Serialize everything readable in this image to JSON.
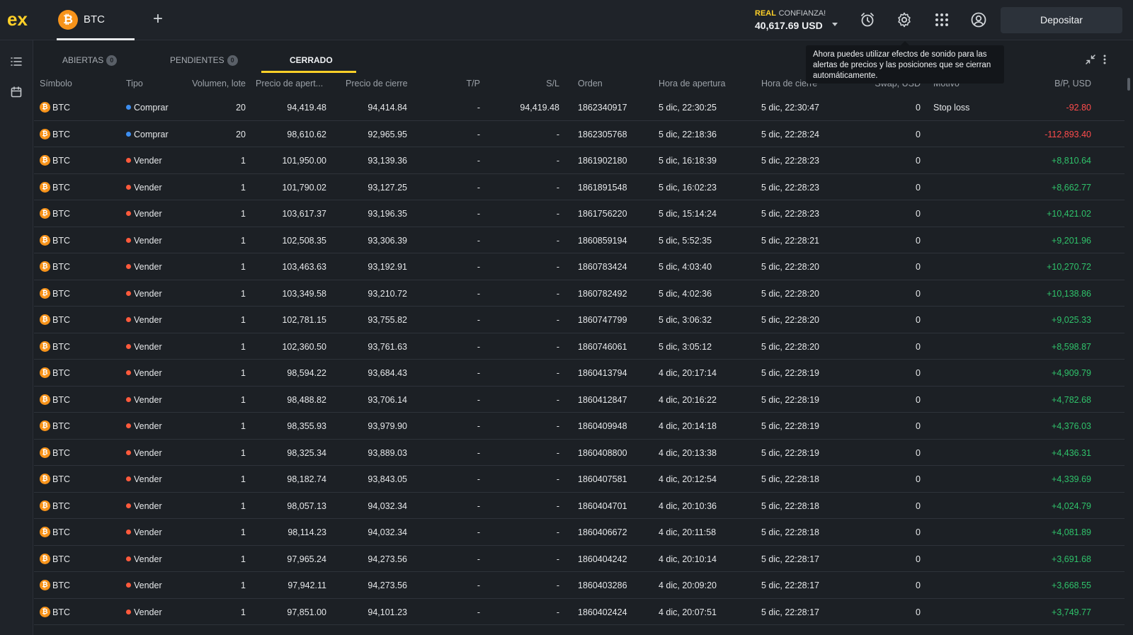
{
  "header": {
    "logo_text": "ex",
    "active_tab": {
      "coin_symbol": "₿",
      "label": "BTC"
    },
    "add_tab": "+",
    "account": {
      "type": "REAL",
      "name": "CONFIANZA!",
      "balance": "40,617.69 USD"
    },
    "icons": [
      "alarm-icon",
      "gear-icon",
      "apps-grid-icon",
      "user-icon"
    ],
    "deposit_label": "Depositar"
  },
  "sidebar": {
    "icons": [
      "list-icon",
      "calendar-icon"
    ]
  },
  "tabs": [
    {
      "label": "ABIERTAS",
      "badge": "0"
    },
    {
      "label": "PENDIENTES",
      "badge": "0"
    },
    {
      "label": "CERRADO"
    }
  ],
  "tooltip": "Ahora puedes utilizar efectos de sonido para las alertas de precios y las posiciones que se cierran automáticamente.",
  "columns": {
    "symbol": "Símbolo",
    "type": "Tipo",
    "volume": "Volumen, lote",
    "open_price": "Precio de apert...",
    "close_price": "Precio de cierre",
    "tp": "T/P",
    "sl": "S/L",
    "order": "Orden",
    "open_time": "Hora de apertura",
    "close_time": "Hora de cierre",
    "swap": "Swap, USD",
    "reason": "Motivo",
    "pnl": "B/P, USD"
  },
  "colors": {
    "buy": "#3d8ef0",
    "sell": "#ff5a3c",
    "profit": "#2fc26a",
    "loss": "#ff4c4c",
    "accent": "#ffd028"
  },
  "rows": [
    {
      "symbol": "BTC",
      "type": "Comprar",
      "side": "buy",
      "volume": "20",
      "open": "94,419.48",
      "close": "94,414.84",
      "tp": "-",
      "sl": "94,419.48",
      "order": "1862340917",
      "open_time": "5 dic, 22:30:25",
      "close_time": "5 dic, 22:30:47",
      "swap": "0",
      "reason": "Stop loss",
      "pnl": "-92.80",
      "pnl_sign": "neg"
    },
    {
      "symbol": "BTC",
      "type": "Comprar",
      "side": "buy",
      "volume": "20",
      "open": "98,610.62",
      "close": "92,965.95",
      "tp": "-",
      "sl": "-",
      "order": "1862305768",
      "open_time": "5 dic, 22:18:36",
      "close_time": "5 dic, 22:28:24",
      "swap": "0",
      "reason": "",
      "pnl": "-112,893.40",
      "pnl_sign": "neg"
    },
    {
      "symbol": "BTC",
      "type": "Vender",
      "side": "sell",
      "volume": "1",
      "open": "101,950.00",
      "close": "93,139.36",
      "tp": "-",
      "sl": "-",
      "order": "1861902180",
      "open_time": "5 dic, 16:18:39",
      "close_time": "5 dic, 22:28:23",
      "swap": "0",
      "reason": "",
      "pnl": "+8,810.64",
      "pnl_sign": "pos"
    },
    {
      "symbol": "BTC",
      "type": "Vender",
      "side": "sell",
      "volume": "1",
      "open": "101,790.02",
      "close": "93,127.25",
      "tp": "-",
      "sl": "-",
      "order": "1861891548",
      "open_time": "5 dic, 16:02:23",
      "close_time": "5 dic, 22:28:23",
      "swap": "0",
      "reason": "",
      "pnl": "+8,662.77",
      "pnl_sign": "pos"
    },
    {
      "symbol": "BTC",
      "type": "Vender",
      "side": "sell",
      "volume": "1",
      "open": "103,617.37",
      "close": "93,196.35",
      "tp": "-",
      "sl": "-",
      "order": "1861756220",
      "open_time": "5 dic, 15:14:24",
      "close_time": "5 dic, 22:28:23",
      "swap": "0",
      "reason": "",
      "pnl": "+10,421.02",
      "pnl_sign": "pos"
    },
    {
      "symbol": "BTC",
      "type": "Vender",
      "side": "sell",
      "volume": "1",
      "open": "102,508.35",
      "close": "93,306.39",
      "tp": "-",
      "sl": "-",
      "order": "1860859194",
      "open_time": "5 dic, 5:52:35",
      "close_time": "5 dic, 22:28:21",
      "swap": "0",
      "reason": "",
      "pnl": "+9,201.96",
      "pnl_sign": "pos"
    },
    {
      "symbol": "BTC",
      "type": "Vender",
      "side": "sell",
      "volume": "1",
      "open": "103,463.63",
      "close": "93,192.91",
      "tp": "-",
      "sl": "-",
      "order": "1860783424",
      "open_time": "5 dic, 4:03:40",
      "close_time": "5 dic, 22:28:20",
      "swap": "0",
      "reason": "",
      "pnl": "+10,270.72",
      "pnl_sign": "pos"
    },
    {
      "symbol": "BTC",
      "type": "Vender",
      "side": "sell",
      "volume": "1",
      "open": "103,349.58",
      "close": "93,210.72",
      "tp": "-",
      "sl": "-",
      "order": "1860782492",
      "open_time": "5 dic, 4:02:36",
      "close_time": "5 dic, 22:28:20",
      "swap": "0",
      "reason": "",
      "pnl": "+10,138.86",
      "pnl_sign": "pos"
    },
    {
      "symbol": "BTC",
      "type": "Vender",
      "side": "sell",
      "volume": "1",
      "open": "102,781.15",
      "close": "93,755.82",
      "tp": "-",
      "sl": "-",
      "order": "1860747799",
      "open_time": "5 dic, 3:06:32",
      "close_time": "5 dic, 22:28:20",
      "swap": "0",
      "reason": "",
      "pnl": "+9,025.33",
      "pnl_sign": "pos"
    },
    {
      "symbol": "BTC",
      "type": "Vender",
      "side": "sell",
      "volume": "1",
      "open": "102,360.50",
      "close": "93,761.63",
      "tp": "-",
      "sl": "-",
      "order": "1860746061",
      "open_time": "5 dic, 3:05:12",
      "close_time": "5 dic, 22:28:20",
      "swap": "0",
      "reason": "",
      "pnl": "+8,598.87",
      "pnl_sign": "pos"
    },
    {
      "symbol": "BTC",
      "type": "Vender",
      "side": "sell",
      "volume": "1",
      "open": "98,594.22",
      "close": "93,684.43",
      "tp": "-",
      "sl": "-",
      "order": "1860413794",
      "open_time": "4 dic, 20:17:14",
      "close_time": "5 dic, 22:28:19",
      "swap": "0",
      "reason": "",
      "pnl": "+4,909.79",
      "pnl_sign": "pos"
    },
    {
      "symbol": "BTC",
      "type": "Vender",
      "side": "sell",
      "volume": "1",
      "open": "98,488.82",
      "close": "93,706.14",
      "tp": "-",
      "sl": "-",
      "order": "1860412847",
      "open_time": "4 dic, 20:16:22",
      "close_time": "5 dic, 22:28:19",
      "swap": "0",
      "reason": "",
      "pnl": "+4,782.68",
      "pnl_sign": "pos"
    },
    {
      "symbol": "BTC",
      "type": "Vender",
      "side": "sell",
      "volume": "1",
      "open": "98,355.93",
      "close": "93,979.90",
      "tp": "-",
      "sl": "-",
      "order": "1860409948",
      "open_time": "4 dic, 20:14:18",
      "close_time": "5 dic, 22:28:19",
      "swap": "0",
      "reason": "",
      "pnl": "+4,376.03",
      "pnl_sign": "pos"
    },
    {
      "symbol": "BTC",
      "type": "Vender",
      "side": "sell",
      "volume": "1",
      "open": "98,325.34",
      "close": "93,889.03",
      "tp": "-",
      "sl": "-",
      "order": "1860408800",
      "open_time": "4 dic, 20:13:38",
      "close_time": "5 dic, 22:28:19",
      "swap": "0",
      "reason": "",
      "pnl": "+4,436.31",
      "pnl_sign": "pos"
    },
    {
      "symbol": "BTC",
      "type": "Vender",
      "side": "sell",
      "volume": "1",
      "open": "98,182.74",
      "close": "93,843.05",
      "tp": "-",
      "sl": "-",
      "order": "1860407581",
      "open_time": "4 dic, 20:12:54",
      "close_time": "5 dic, 22:28:18",
      "swap": "0",
      "reason": "",
      "pnl": "+4,339.69",
      "pnl_sign": "pos"
    },
    {
      "symbol": "BTC",
      "type": "Vender",
      "side": "sell",
      "volume": "1",
      "open": "98,057.13",
      "close": "94,032.34",
      "tp": "-",
      "sl": "-",
      "order": "1860404701",
      "open_time": "4 dic, 20:10:36",
      "close_time": "5 dic, 22:28:18",
      "swap": "0",
      "reason": "",
      "pnl": "+4,024.79",
      "pnl_sign": "pos"
    },
    {
      "symbol": "BTC",
      "type": "Vender",
      "side": "sell",
      "volume": "1",
      "open": "98,114.23",
      "close": "94,032.34",
      "tp": "-",
      "sl": "-",
      "order": "1860406672",
      "open_time": "4 dic, 20:11:58",
      "close_time": "5 dic, 22:28:18",
      "swap": "0",
      "reason": "",
      "pnl": "+4,081.89",
      "pnl_sign": "pos"
    },
    {
      "symbol": "BTC",
      "type": "Vender",
      "side": "sell",
      "volume": "1",
      "open": "97,965.24",
      "close": "94,273.56",
      "tp": "-",
      "sl": "-",
      "order": "1860404242",
      "open_time": "4 dic, 20:10:14",
      "close_time": "5 dic, 22:28:17",
      "swap": "0",
      "reason": "",
      "pnl": "+3,691.68",
      "pnl_sign": "pos"
    },
    {
      "symbol": "BTC",
      "type": "Vender",
      "side": "sell",
      "volume": "1",
      "open": "97,942.11",
      "close": "94,273.56",
      "tp": "-",
      "sl": "-",
      "order": "1860403286",
      "open_time": "4 dic, 20:09:20",
      "close_time": "5 dic, 22:28:17",
      "swap": "0",
      "reason": "",
      "pnl": "+3,668.55",
      "pnl_sign": "pos"
    },
    {
      "symbol": "BTC",
      "type": "Vender",
      "side": "sell",
      "volume": "1",
      "open": "97,851.00",
      "close": "94,101.23",
      "tp": "-",
      "sl": "-",
      "order": "1860402424",
      "open_time": "4 dic, 20:07:51",
      "close_time": "5 dic, 22:28:17",
      "swap": "0",
      "reason": "",
      "pnl": "+3,749.77",
      "pnl_sign": "pos"
    }
  ]
}
